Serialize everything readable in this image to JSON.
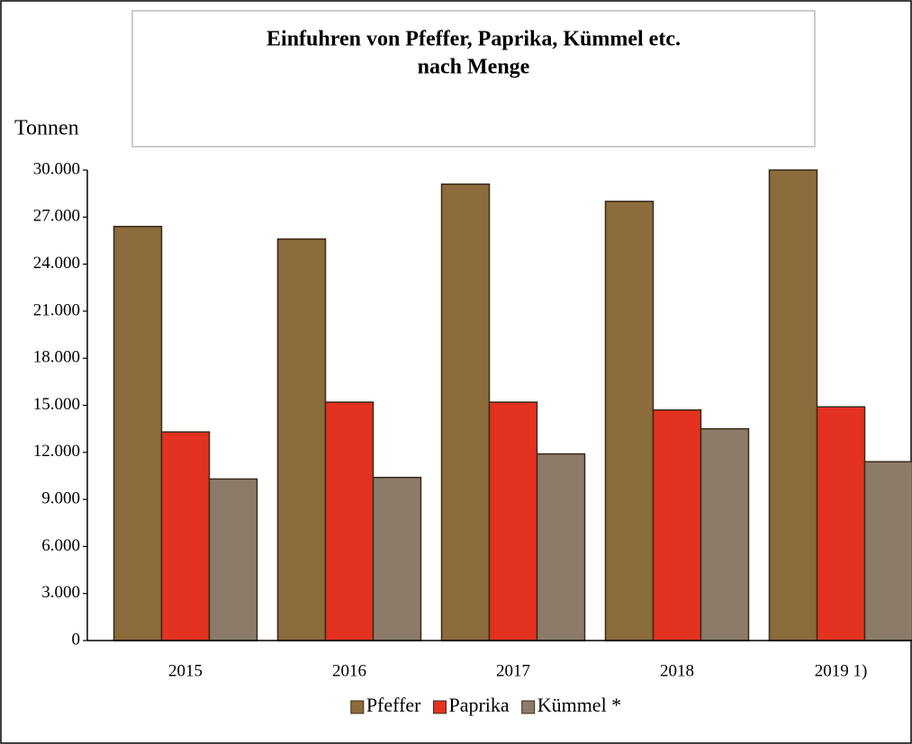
{
  "chart_data": {
    "type": "bar",
    "title": [
      "Einfuhren von Pfeffer, Paprika, Kümmel  etc.",
      "nach Menge"
    ],
    "y_label": "Tonnen",
    "categories": [
      "2015",
      "2016",
      "2017",
      "2018",
      "2019 1)"
    ],
    "series": [
      {
        "name": "Pfeffer",
        "color": "#8c6b3c",
        "values": [
          26400,
          25600,
          29100,
          28000,
          30000
        ]
      },
      {
        "name": "Paprika",
        "color": "#e3321f",
        "values": [
          13300,
          15200,
          15200,
          14700,
          14900
        ]
      },
      {
        "name": "Kümmel *",
        "color": "#8b7b68",
        "values": [
          10300,
          10400,
          11900,
          13500,
          11400
        ]
      }
    ],
    "ylim": [
      0,
      30000
    ],
    "yticks": [
      0,
      {
        "value": 3000,
        "label": "3.000"
      },
      {
        "value": 6000,
        "label": "6.000"
      },
      {
        "value": 9000,
        "label": "9.000"
      },
      {
        "value": 12000,
        "label": "12.000"
      },
      {
        "value": 15000,
        "label": "15.000"
      },
      {
        "value": 18000,
        "label": "18.000"
      },
      {
        "value": 21000,
        "label": "21.000"
      },
      {
        "value": 24000,
        "label": "24.000"
      },
      {
        "value": 27000,
        "label": "27.000"
      },
      {
        "value": 30000,
        "label": "30.000"
      }
    ],
    "legend": "bottom"
  }
}
